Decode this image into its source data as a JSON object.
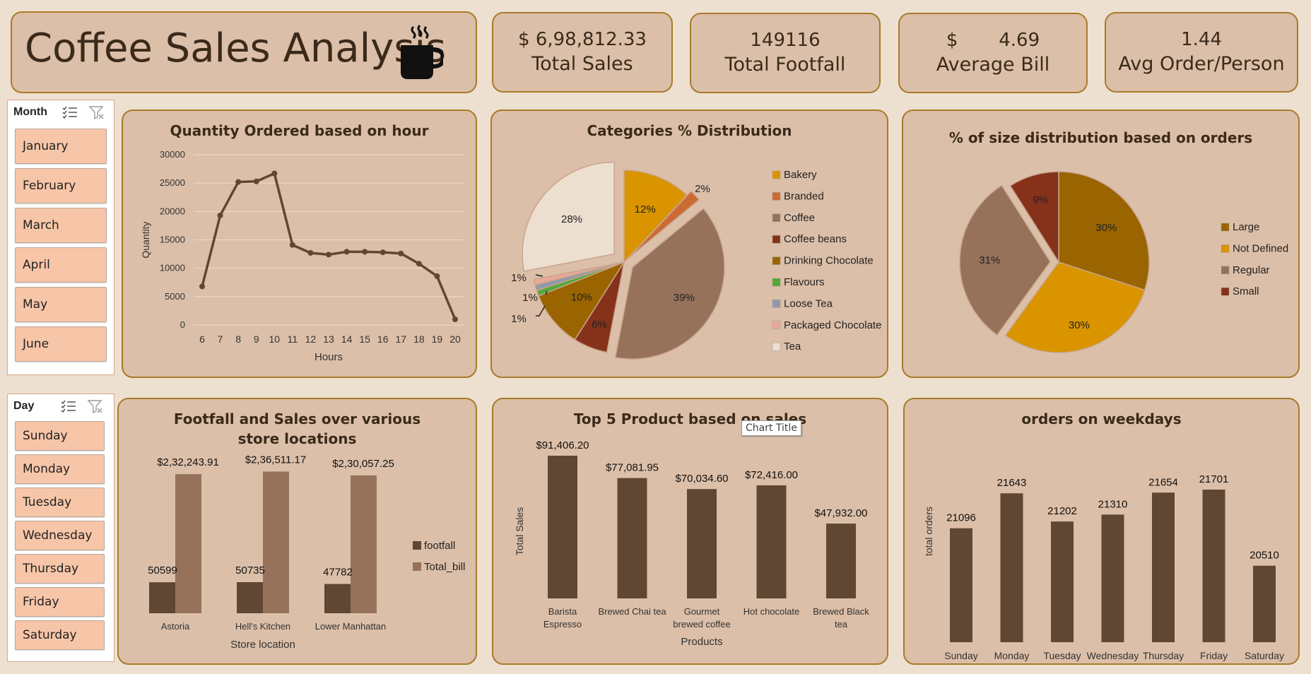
{
  "header": {
    "title": "Coffee Sales Analysis"
  },
  "kpis": {
    "total_sales_value": "$ 6,98,812.33",
    "total_sales_label": "Total Sales",
    "footfall_value": "149116",
    "footfall_label": "Total Footfall",
    "avg_bill_value": "$       4.69",
    "avg_bill_label": "Average Bill",
    "avg_order_value": "1.44",
    "avg_order_label": "Avg Order/Person"
  },
  "month_slicer": {
    "header": "Month",
    "items": [
      "January",
      "February",
      "March",
      "April",
      "May",
      "June"
    ]
  },
  "day_slicer": {
    "header": "Day",
    "items": [
      "Sunday",
      "Monday",
      "Tuesday",
      "Wednesday",
      "Thursday",
      "Friday",
      "Saturday"
    ]
  },
  "tooltip": {
    "text": "Chart Title"
  },
  "colors": {
    "panel": "#dcbfa8",
    "border": "#a87a2a",
    "dark_bar": "#604733",
    "light_bar": "#96725b",
    "slicer_btn": "#f7c5a8"
  },
  "chart_data": [
    {
      "type": "line",
      "title": "Quantity Ordered based on hour",
      "xlabel": "Hours",
      "ylabel": "Quantity",
      "x": [
        6,
        7,
        8,
        9,
        10,
        11,
        12,
        13,
        14,
        15,
        16,
        17,
        18,
        19,
        20
      ],
      "values": [
        6800,
        19300,
        25200,
        25300,
        26700,
        14100,
        12700,
        12400,
        12900,
        12900,
        12800,
        12600,
        10800,
        8600,
        1000
      ],
      "ylim": [
        0,
        30000
      ],
      "yticks": [
        0,
        5000,
        10000,
        15000,
        20000,
        25000,
        30000
      ],
      "grid": true
    },
    {
      "type": "pie",
      "title": "Categories % Distribution",
      "categories": [
        "Bakery",
        "Branded",
        "Coffee",
        "Coffee beans",
        "Drinking Chocolate",
        "Flavours",
        "Loose Tea",
        "Packaged Chocolate",
        "Tea"
      ],
      "values": [
        12,
        2,
        39,
        6,
        10,
        1,
        1,
        1,
        28
      ],
      "labels": [
        "12%",
        "2%",
        "39%",
        "6%",
        "10%",
        "1%",
        "1%",
        "1%",
        "28%"
      ],
      "colors": [
        "#d99400",
        "#cc6a33",
        "#96725b",
        "#86321a",
        "#9a6400",
        "#55a838",
        "#8f9aa8",
        "#e8a898",
        "#eddfd0"
      ],
      "legend": "right"
    },
    {
      "type": "pie",
      "title": "% of size distribution based on orders",
      "categories": [
        "Large",
        "Not Defined",
        "Regular",
        "Small"
      ],
      "values": [
        30,
        30,
        31,
        9
      ],
      "labels": [
        "30%",
        "30%",
        "31%",
        "9%"
      ],
      "colors": [
        "#9a6400",
        "#d99400",
        "#96725b",
        "#86321a"
      ],
      "legend": "right"
    },
    {
      "type": "bar",
      "title": "Footfall and Sales over various store locations",
      "xlabel": "Store location",
      "categories": [
        "Astoria",
        "Hell's Kitchen",
        "Lower Manhattan"
      ],
      "series": [
        {
          "name": "footfall",
          "values": [
            50599,
            50735,
            47782
          ],
          "labels": [
            "50599",
            "50735",
            "47782"
          ]
        },
        {
          "name": "Total_bill",
          "values": [
            232243.91,
            236511.17,
            230057.25
          ],
          "labels": [
            "$2,32,243.91",
            "$2,36,511.17",
            "$2,30,057.25"
          ]
        }
      ],
      "legend": "right"
    },
    {
      "type": "bar",
      "title": "Top 5 Product based on sales",
      "xlabel": "Products",
      "ylabel": "Total Sales",
      "categories": [
        [
          "Barista",
          "Espresso"
        ],
        [
          "Brewed Chai tea"
        ],
        [
          "Gourmet",
          "brewed coffee"
        ],
        [
          "Hot chocolate"
        ],
        [
          "Brewed Black",
          "tea"
        ]
      ],
      "values": [
        91406.2,
        77081.95,
        70034.6,
        72416.0,
        47932.0
      ],
      "labels": [
        "$91,406.20",
        "$77,081.95",
        "$70,034.60",
        "$72,416.00",
        "$47,932.00"
      ]
    },
    {
      "type": "bar",
      "title": "orders on weekdays",
      "ylabel": "total orders",
      "categories": [
        "Sunday",
        "Monday",
        "Tuesday",
        "Wednesday",
        "Thursday",
        "Friday",
        "Saturday"
      ],
      "values": [
        21096,
        21643,
        21202,
        21310,
        21654,
        21701,
        20510
      ],
      "labels": [
        "21096",
        "21643",
        "21202",
        "21310",
        "21654",
        "21701",
        "20510"
      ]
    }
  ]
}
